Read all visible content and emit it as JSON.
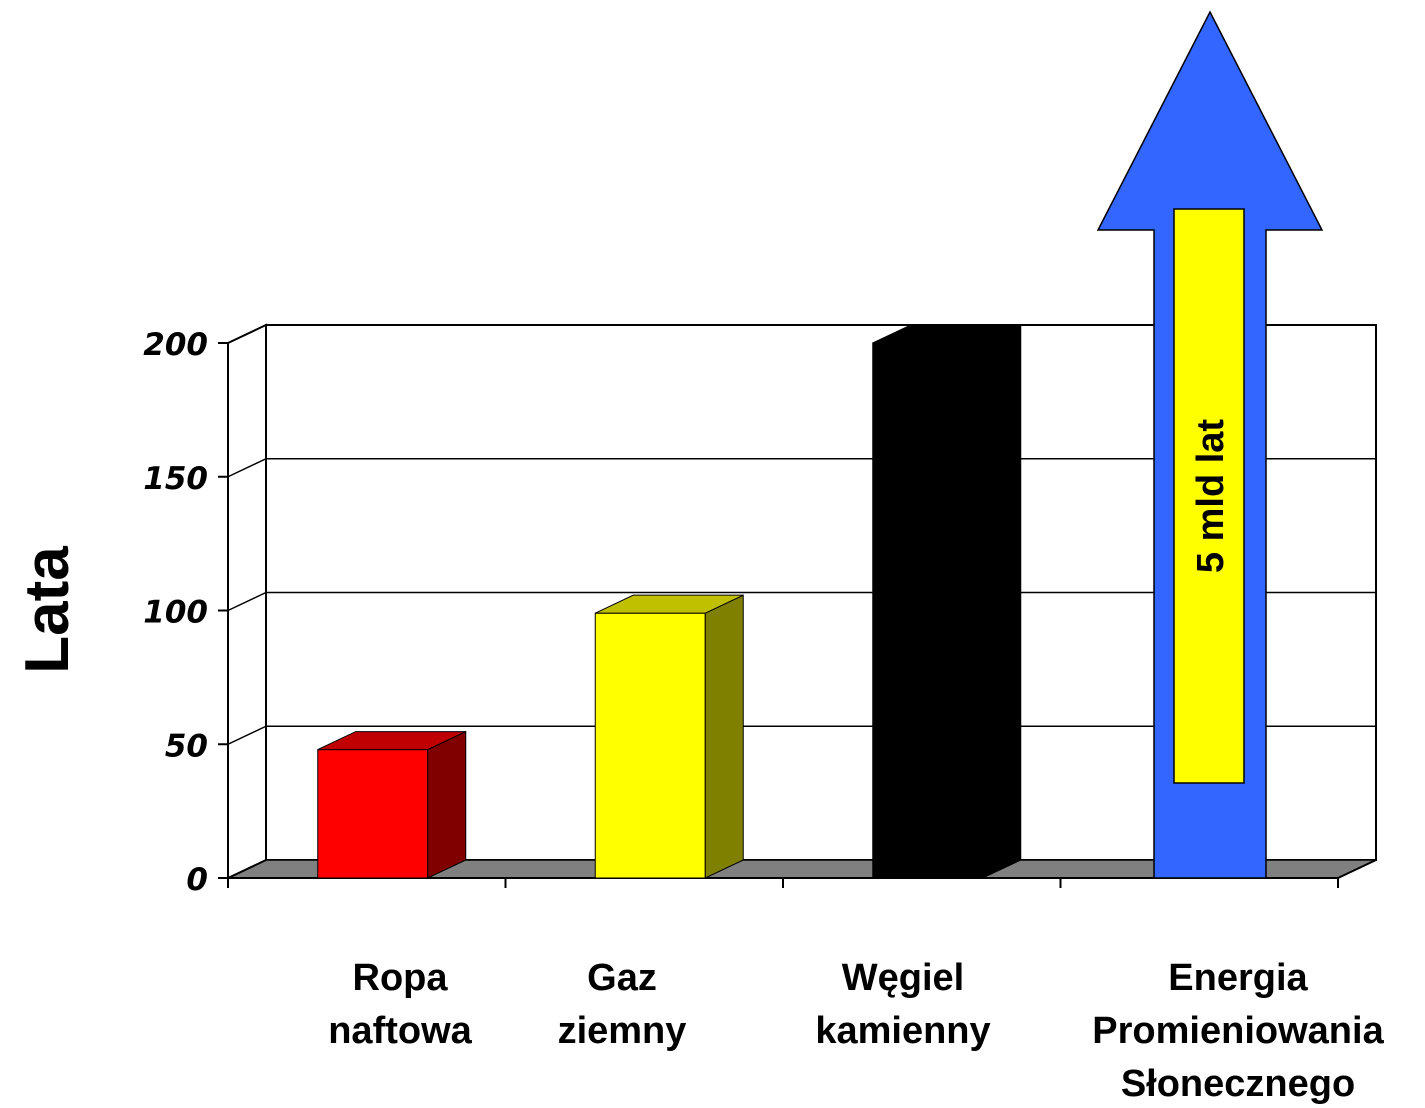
{
  "chart_data": {
    "type": "bar",
    "title": "",
    "xlabel": "",
    "ylabel": "Lata",
    "ylim": [
      0,
      200
    ],
    "yticks": [
      "0",
      "50",
      "100",
      "150",
      "200"
    ],
    "grid": true,
    "categories": [
      [
        "Ropa",
        "naftowa"
      ],
      [
        "Gaz",
        "ziemny"
      ],
      [
        "Węgiel",
        "kamienny"
      ],
      [
        "Energia",
        "Promieniowania",
        "Słonecznego"
      ]
    ],
    "values": [
      48,
      99,
      200,
      null
    ],
    "bar_colors": [
      "#ff0000",
      "#ffff00",
      "#000000"
    ],
    "bar_side_colors": [
      "#800000",
      "#808000",
      "#000000"
    ],
    "bar_top_colors": [
      "#c00000",
      "#c0c000",
      "#000000"
    ],
    "arrow": {
      "category_index": 3,
      "label": "5 mld lat",
      "color": "#3366ff",
      "inner_color": "#ffff00"
    },
    "floor_color": "#808080"
  }
}
